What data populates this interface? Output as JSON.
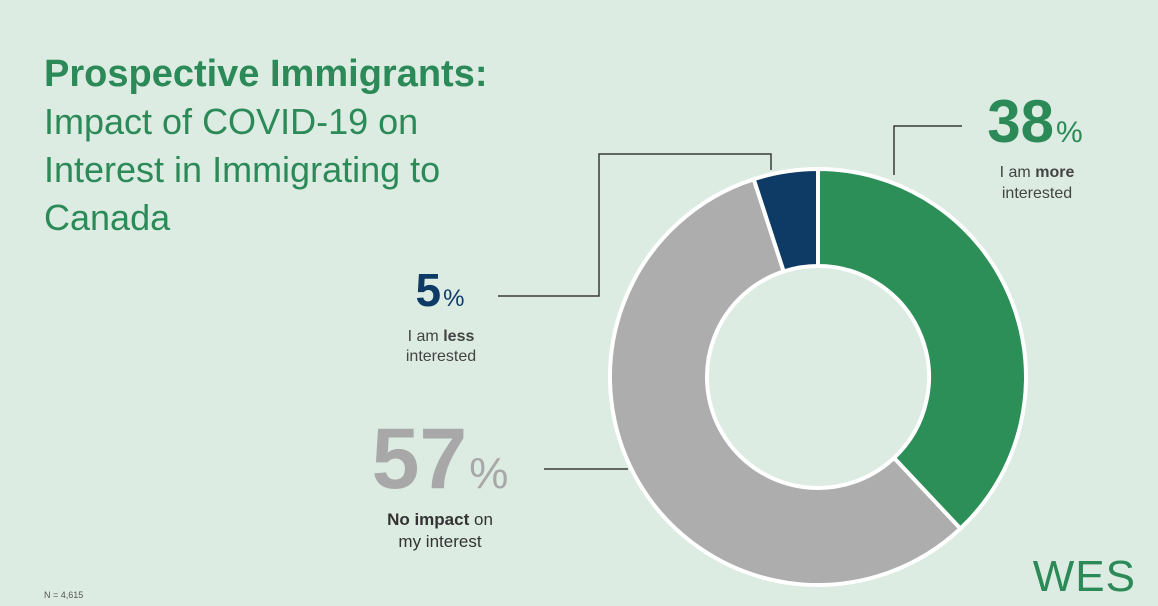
{
  "title": {
    "line1": "Prospective Immigrants:",
    "line2": "Impact of COVID-19 on Interest in Immigrating to Canada"
  },
  "chart_data": {
    "type": "pie",
    "donut": true,
    "slices": [
      {
        "value": 38,
        "label_pre": "I am",
        "label_bold": "more",
        "label_post": "interested",
        "color": "#2b8f57"
      },
      {
        "value": 57,
        "label_bold": "No impact",
        "label_post": "on",
        "label_line2": "my interest",
        "color": "#adadad"
      },
      {
        "value": 5,
        "label_pre": "I am",
        "label_bold": "less",
        "label_post": "interested",
        "color": "#0e3a66"
      }
    ]
  },
  "note": "N = 4,615",
  "logo": "WES"
}
